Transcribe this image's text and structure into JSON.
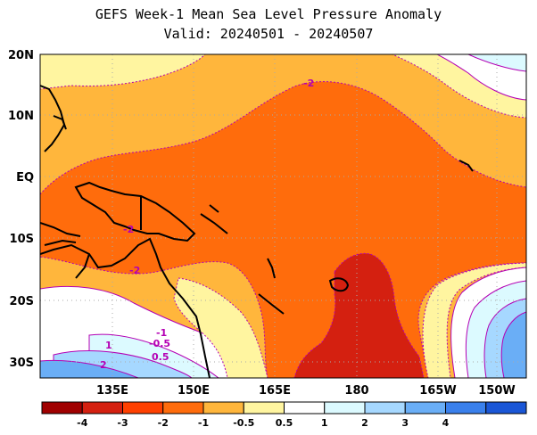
{
  "title": {
    "line1": "GEFS Week-1 Mean Sea Level Pressure Anomaly",
    "line2": "Valid: 20240501 - 20240507"
  },
  "axes": {
    "lat_labels": [
      "20N",
      "10N",
      "EQ",
      "10S",
      "20S",
      "30S"
    ],
    "lon_labels": [
      "135E",
      "150E",
      "165E",
      "180",
      "165W",
      "150W"
    ]
  },
  "contour_labels": [
    "-2",
    "-2",
    "-2",
    "-1",
    "-0.5",
    "1",
    "0.5",
    "2"
  ],
  "colorbar": {
    "labels": [
      "-4",
      "-3",
      "-2",
      "-1",
      "-0.5",
      "0.5",
      "1",
      "2",
      "3",
      "4"
    ],
    "colors": [
      "#a00000",
      "#d42010",
      "#ff4000",
      "#ff6c0c",
      "#ffb63c",
      "#fff5a0",
      "#ffffff",
      "#dcfaff",
      "#a6d8ff",
      "#6aaef6",
      "#3a80ec",
      "#1a56d6"
    ]
  }
}
